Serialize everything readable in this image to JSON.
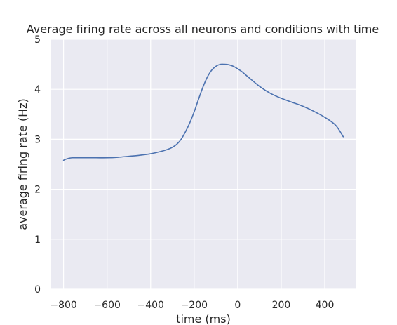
{
  "chart_data": {
    "type": "line",
    "title": "Average firing rate across all neurons and conditions with time",
    "xlabel": "time (ms)",
    "ylabel": "average firing rate (Hz)",
    "xlim": [
      -860,
      545
    ],
    "ylim": [
      0,
      5
    ],
    "xticks": [
      -800,
      -600,
      -400,
      -200,
      0,
      200,
      400
    ],
    "xtick_labels": [
      "−800",
      "−600",
      "−400",
      "−200",
      "0",
      "200",
      "400"
    ],
    "yticks": [
      0,
      1,
      2,
      3,
      4,
      5
    ],
    "ytick_labels": [
      "0",
      "1",
      "2",
      "3",
      "4",
      "5"
    ],
    "grid": true,
    "background_color": "#eaeaf2",
    "grid_color": "#ffffff",
    "series": [
      {
        "color": "#4c72b0",
        "x": [
          -800,
          -790,
          -775,
          -760,
          -740,
          -700,
          -650,
          -600,
          -550,
          -500,
          -450,
          -400,
          -350,
          -320,
          -300,
          -280,
          -260,
          -240,
          -220,
          -200,
          -180,
          -160,
          -140,
          -120,
          -100,
          -80,
          -60,
          -40,
          -20,
          0,
          20,
          50,
          100,
          150,
          200,
          250,
          300,
          350,
          400,
          450,
          485
        ],
        "y": [
          2.58,
          2.6,
          2.62,
          2.63,
          2.63,
          2.63,
          2.63,
          2.63,
          2.64,
          2.66,
          2.68,
          2.71,
          2.76,
          2.8,
          2.84,
          2.9,
          3.0,
          3.15,
          3.33,
          3.55,
          3.8,
          4.04,
          4.24,
          4.38,
          4.46,
          4.5,
          4.5,
          4.49,
          4.46,
          4.41,
          4.35,
          4.24,
          4.06,
          3.92,
          3.82,
          3.74,
          3.66,
          3.56,
          3.44,
          3.28,
          3.05
        ]
      }
    ]
  }
}
